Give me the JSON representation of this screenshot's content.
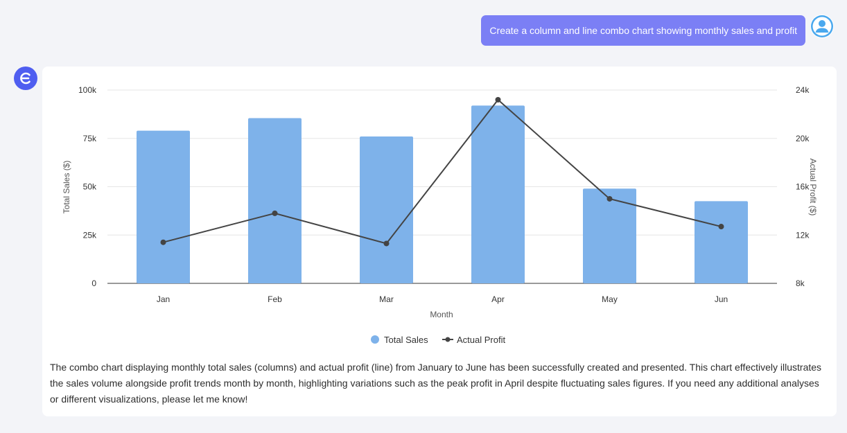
{
  "user_message": {
    "text": "Create a column and line combo chart showing monthly sales and profit"
  },
  "assistant": {
    "logo_letter": "E",
    "answer": "The combo chart displaying monthly total sales (columns) and actual profit (line) from January to June has been successfully created and presented. This chart effectively illustrates the sales volume alongside profit trends month by month, highlighting variations such as the peak profit in April despite fluctuating sales figures. If you need any additional analyses or different visualizations, please let me know!"
  },
  "colors": {
    "bar": "#7eb2ea",
    "line": "#444444",
    "user_bubble": "#7b7ff5",
    "bot_avatar": "#4f5ef0",
    "user_avatar": "#4aa8ee"
  },
  "chart_data": {
    "type": "bar+line",
    "categories": [
      "Jan",
      "Feb",
      "Mar",
      "Apr",
      "May",
      "Jun"
    ],
    "series": [
      {
        "name": "Total Sales",
        "type": "bar",
        "axis": "left",
        "values": [
          79000,
          85500,
          76000,
          92000,
          49000,
          42500
        ]
      },
      {
        "name": "Actual Profit",
        "type": "line",
        "axis": "right",
        "values": [
          11400,
          13800,
          11300,
          23200,
          15000,
          12700
        ]
      }
    ],
    "xlabel": "Month",
    "ylabel": "Total Sales ($)",
    "y2label": "Actual Profit ($)",
    "ylim": [
      0,
      100000
    ],
    "y2lim": [
      8000,
      24000
    ],
    "yticks": [
      "0",
      "25k",
      "50k",
      "75k",
      "100k"
    ],
    "y2ticks": [
      "8k",
      "12k",
      "16k",
      "20k",
      "24k"
    ],
    "legend": "bottom-center"
  }
}
